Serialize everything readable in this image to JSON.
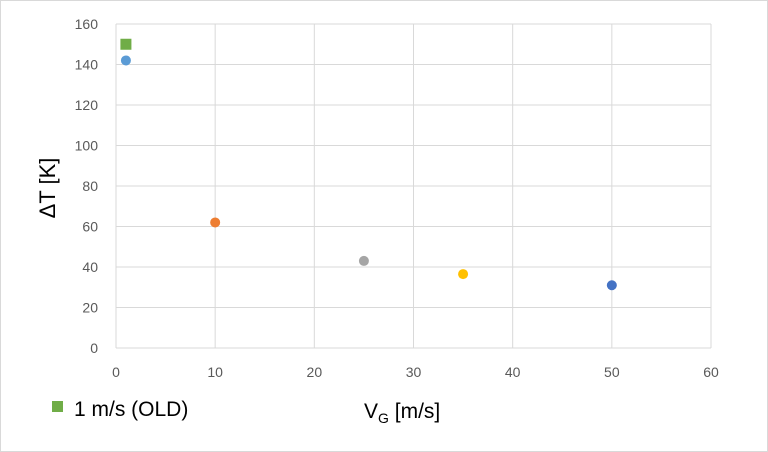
{
  "chart_data": {
    "type": "scatter",
    "title": "",
    "xlabel": {
      "main": "V",
      "sub": "G",
      "unit": " [m/s]"
    },
    "ylabel": "ΔT [K]",
    "xlim": [
      0,
      60
    ],
    "ylim": [
      0,
      160
    ],
    "x_ticks": [
      0,
      10,
      20,
      30,
      40,
      50,
      60
    ],
    "y_ticks": [
      0,
      20,
      40,
      60,
      80,
      100,
      120,
      140,
      160
    ],
    "grid": true,
    "points": [
      {
        "x": 1,
        "y": 142,
        "color": "#5b9bd5",
        "marker": "circle"
      },
      {
        "x": 10,
        "y": 62,
        "color": "#ed7d31",
        "marker": "circle"
      },
      {
        "x": 25,
        "y": 43,
        "color": "#a5a5a5",
        "marker": "circle"
      },
      {
        "x": 35,
        "y": 36.5,
        "color": "#ffc000",
        "marker": "circle"
      },
      {
        "x": 50,
        "y": 31,
        "color": "#4472c4",
        "marker": "circle"
      },
      {
        "x": 1,
        "y": 150,
        "color": "#70ad47",
        "marker": "square"
      }
    ],
    "legend": {
      "position": "bottom-left",
      "entries": [
        {
          "label": "1 m/s (OLD)",
          "color": "#70ad47",
          "marker": "square"
        }
      ]
    }
  }
}
